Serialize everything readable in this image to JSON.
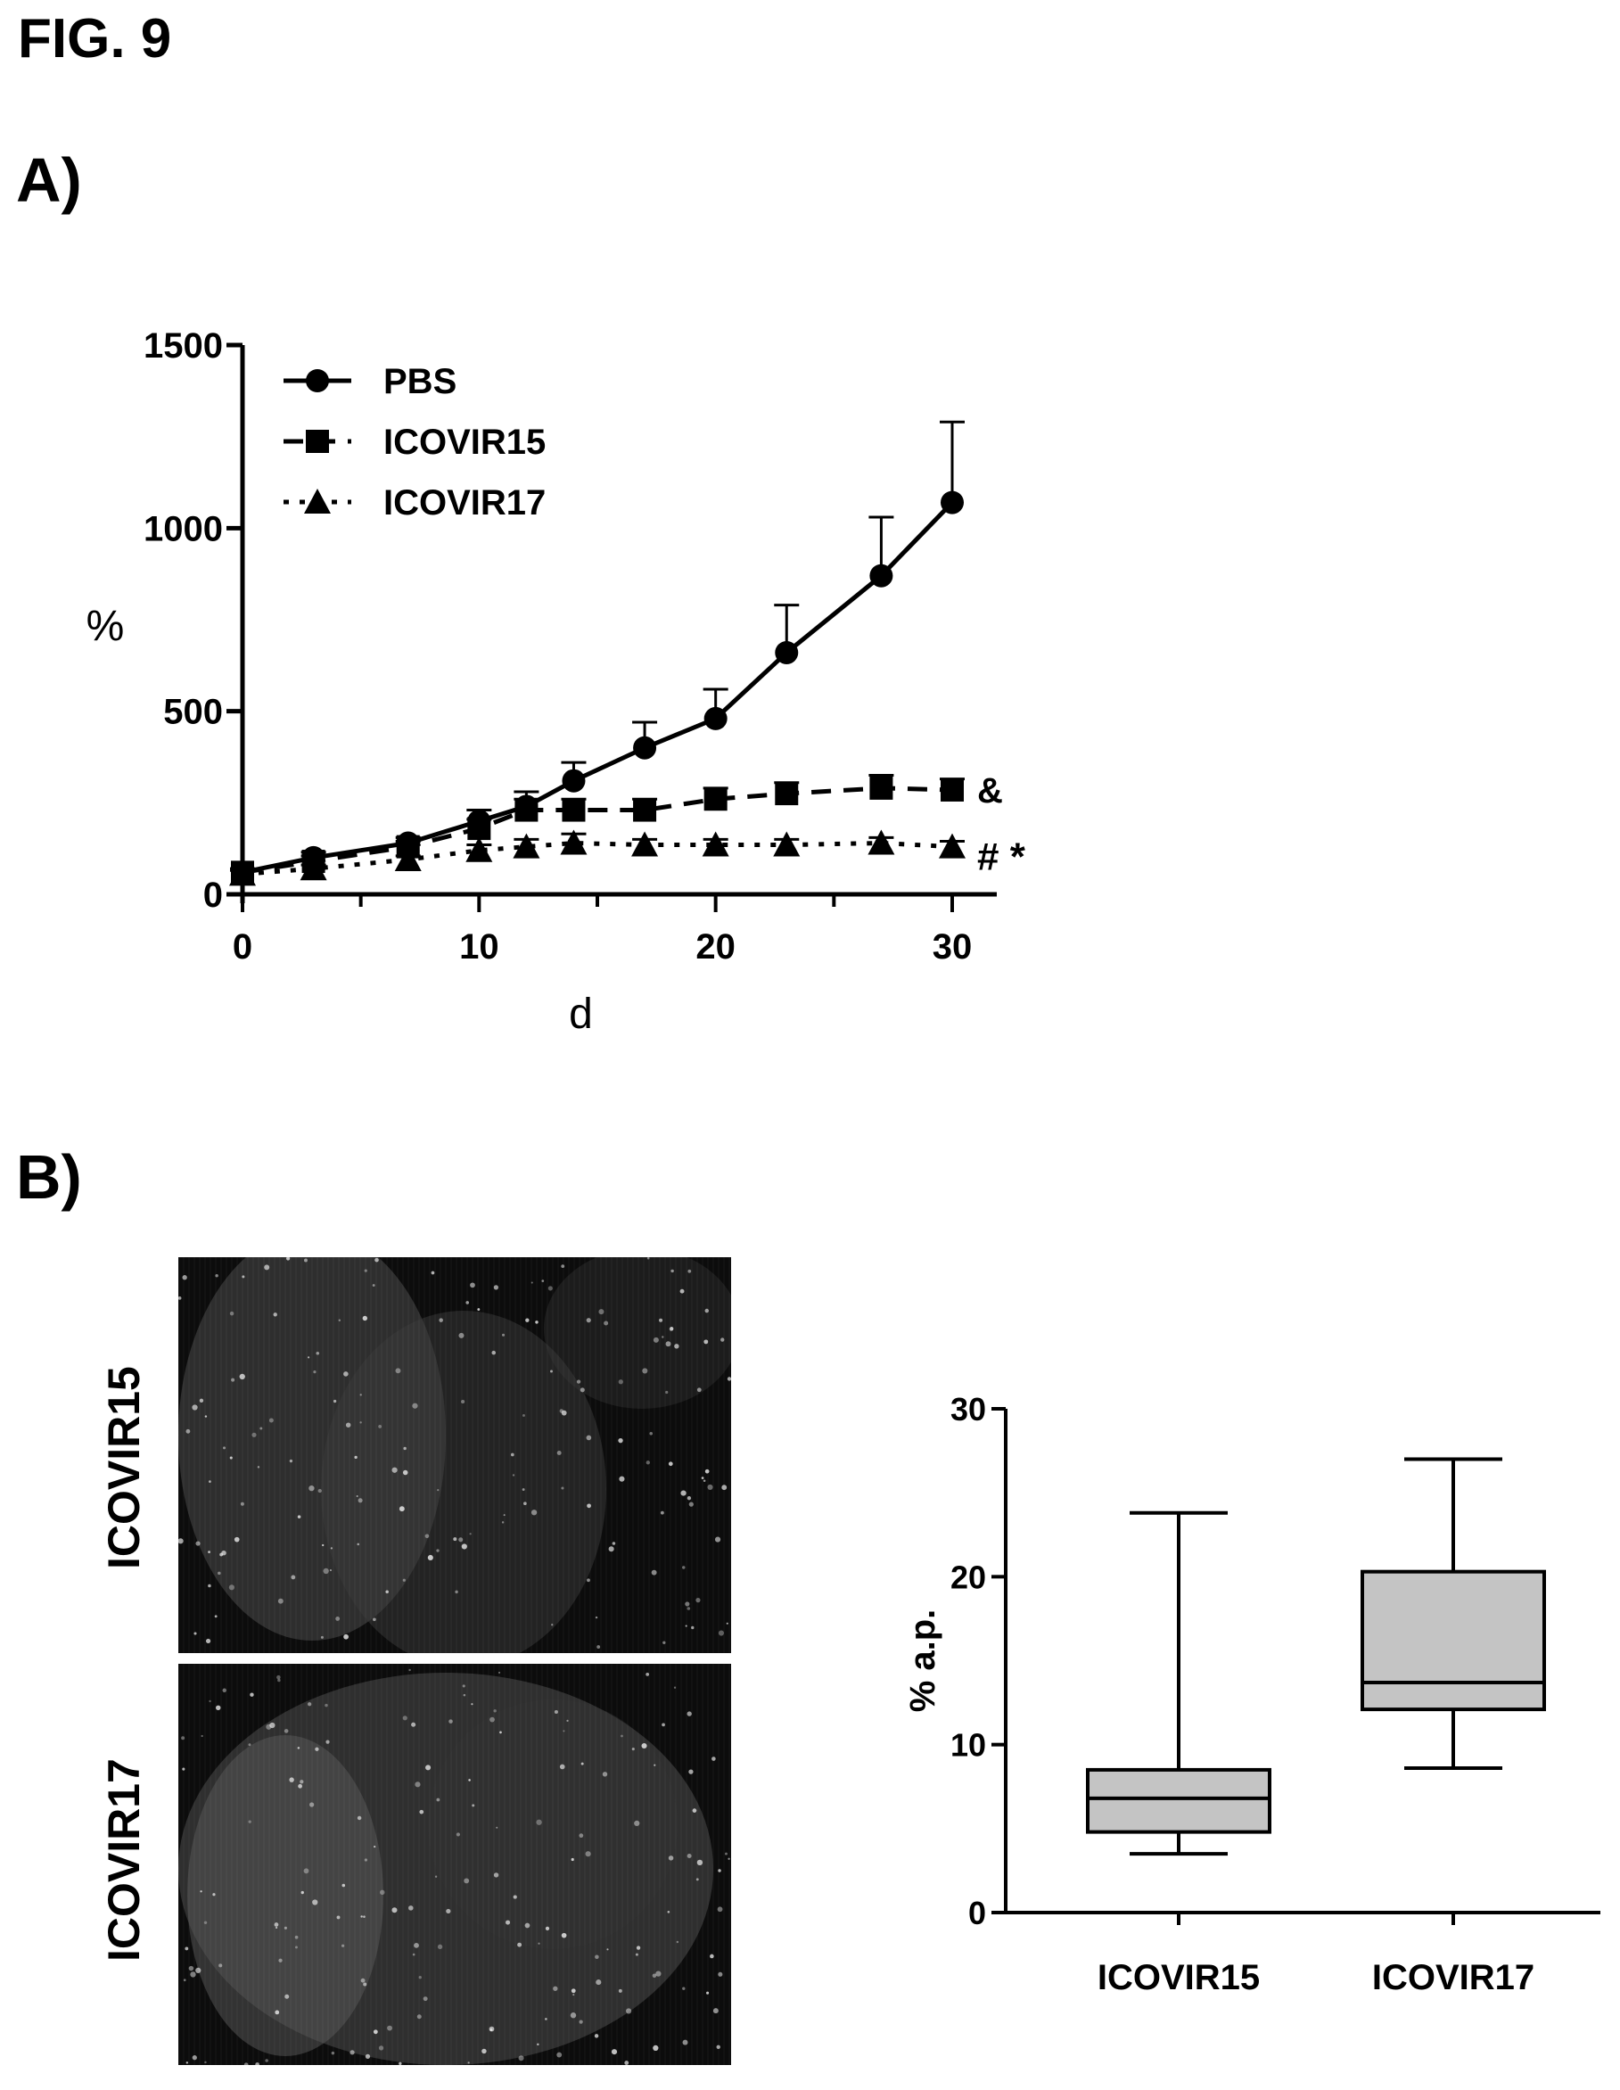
{
  "figure_title": "FIG. 9",
  "panel_a_label": "A)",
  "panel_b_label": "B)",
  "chart_data": [
    {
      "type": "line",
      "panel": "A",
      "title": "",
      "xlabel": "d",
      "ylabel": "%",
      "xlim": [
        0,
        30
      ],
      "ylim": [
        0,
        1500
      ],
      "xticks": [
        0,
        10,
        20,
        30
      ],
      "yticks": [
        0,
        500,
        1000,
        1500
      ],
      "legend_position": "top-left",
      "series": [
        {
          "name": "PBS",
          "marker": "circle",
          "line": "solid",
          "x": [
            0,
            3,
            7,
            10,
            12,
            14,
            17,
            20,
            23,
            27,
            30
          ],
          "y": [
            60,
            100,
            140,
            200,
            240,
            310,
            400,
            480,
            660,
            870,
            1070
          ],
          "err": [
            10,
            15,
            15,
            30,
            40,
            50,
            70,
            80,
            130,
            160,
            220
          ]
        },
        {
          "name": "ICOVIR15",
          "marker": "square",
          "line": "dashed",
          "x": [
            0,
            3,
            7,
            10,
            12,
            14,
            17,
            20,
            23,
            27,
            30
          ],
          "y": [
            60,
            90,
            130,
            180,
            230,
            230,
            230,
            260,
            275,
            290,
            285
          ],
          "err": [
            10,
            15,
            15,
            25,
            30,
            30,
            30,
            30,
            30,
            35,
            30
          ]
        },
        {
          "name": "ICOVIR17",
          "marker": "triangle",
          "line": "dotted",
          "x": [
            0,
            3,
            7,
            10,
            12,
            14,
            17,
            20,
            23,
            27,
            30
          ],
          "y": [
            55,
            70,
            95,
            120,
            130,
            140,
            135,
            135,
            135,
            140,
            130
          ],
          "err": [
            10,
            10,
            10,
            15,
            20,
            25,
            15,
            15,
            15,
            15,
            15
          ]
        }
      ],
      "annotations": [
        {
          "text": "&",
          "series": "ICOVIR15"
        },
        {
          "text": "# *",
          "series": "ICOVIR17"
        }
      ]
    },
    {
      "type": "box",
      "panel": "B",
      "title": "",
      "xlabel": "",
      "ylabel": "% a.p.",
      "ylim": [
        0,
        30
      ],
      "yticks": [
        0,
        10,
        20,
        30
      ],
      "categories": [
        "ICOVIR15",
        "ICOVIR17"
      ],
      "boxes": [
        {
          "min": 3.5,
          "q1": 4.8,
          "median": 6.8,
          "q3": 8.5,
          "max": 23.8
        },
        {
          "min": 8.6,
          "q1": 12.1,
          "median": 13.7,
          "q3": 20.3,
          "max": 27.0
        }
      ]
    }
  ],
  "micrographs": [
    {
      "label": "ICOVIR15"
    },
    {
      "label": "ICOVIR17"
    }
  ],
  "colors": {
    "box_fill": "#c4c4c4",
    "micrograph_bg": "#0c0c0c",
    "ink": "#000000"
  }
}
